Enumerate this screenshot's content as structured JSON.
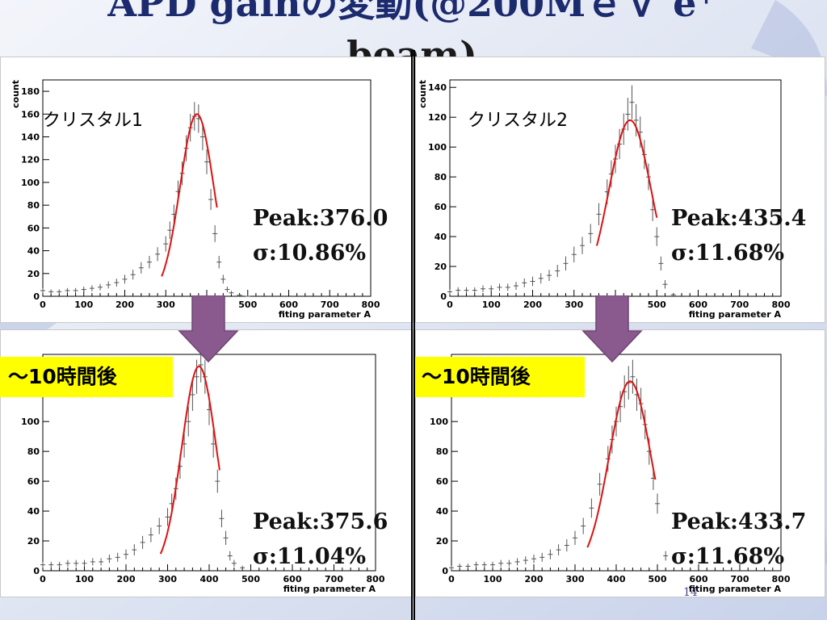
{
  "title": {
    "line1": "APD gainの変動(@200MｅＶ e⁺",
    "line2": "beam)"
  },
  "page_number": "14",
  "colors": {
    "fit": "#e01010",
    "data": "#555555",
    "arrow": "#8a5a8e",
    "badge": "#ffff00"
  },
  "icons": [
    "down-arrow-icon"
  ],
  "panels": [
    {
      "label": "クリスタル1",
      "peak": "Peak:376.0",
      "sigma": "σ:10.86%",
      "badge": ""
    },
    {
      "label": "クリスタル2",
      "peak": "Peak:435.4",
      "sigma": "σ:11.68%",
      "badge": ""
    },
    {
      "label": "",
      "peak": "Peak:375.6",
      "sigma": "σ:11.04%",
      "badge": "〜10時間後"
    },
    {
      "label": "",
      "peak": "Peak:433.7",
      "sigma": "σ:11.68%",
      "badge": "〜10時間後"
    }
  ],
  "chart_data": [
    {
      "type": "scatter",
      "title": "クリスタル1",
      "xlabel": "fiting parameter A",
      "ylabel": "count",
      "xlim": [
        0,
        800
      ],
      "ylim": [
        0,
        190
      ],
      "xticks": [
        0,
        100,
        200,
        300,
        400,
        500,
        600,
        700,
        800
      ],
      "yticks": [
        0,
        20,
        40,
        60,
        80,
        100,
        120,
        140,
        160,
        180
      ],
      "grid": false,
      "series": [
        {
          "x": [
            0,
            20,
            40,
            60,
            80,
            100,
            120,
            140,
            160,
            180,
            200,
            220,
            240,
            260,
            280,
            300,
            310,
            320,
            330,
            340,
            350,
            360,
            370,
            380,
            390,
            400,
            410,
            420,
            430,
            440,
            450,
            460,
            480,
            500
          ],
          "y": [
            5,
            4,
            4,
            5,
            5,
            6,
            7,
            8,
            10,
            12,
            15,
            19,
            25,
            30,
            37,
            46,
            58,
            72,
            92,
            108,
            130,
            148,
            158,
            156,
            140,
            118,
            85,
            55,
            30,
            15,
            6,
            3,
            1,
            0
          ]
        }
      ],
      "fit": {
        "peak": 376.0,
        "sigma_pct": 10.86,
        "amplitude": 160,
        "range": [
          290,
          425
        ]
      }
    },
    {
      "type": "scatter",
      "title": "クリスタル2",
      "xlabel": "fiting parameter A",
      "ylabel": "count",
      "xlim": [
        0,
        800
      ],
      "ylim": [
        0,
        145
      ],
      "xticks": [
        0,
        100,
        200,
        300,
        400,
        500,
        600,
        700,
        800
      ],
      "yticks": [
        0,
        20,
        40,
        60,
        80,
        100,
        120,
        140
      ],
      "grid": false,
      "series": [
        {
          "x": [
            0,
            20,
            40,
            60,
            80,
            100,
            120,
            140,
            160,
            180,
            200,
            220,
            240,
            260,
            280,
            300,
            320,
            340,
            360,
            380,
            390,
            400,
            410,
            420,
            430,
            440,
            450,
            460,
            470,
            480,
            490,
            500,
            510,
            520,
            540
          ],
          "y": [
            3,
            4,
            4,
            4,
            5,
            5,
            6,
            6,
            7,
            9,
            10,
            12,
            14,
            17,
            22,
            28,
            34,
            42,
            55,
            70,
            82,
            92,
            102,
            112,
            122,
            130,
            118,
            110,
            95,
            80,
            58,
            40,
            22,
            8,
            1
          ]
        }
      ],
      "fit": {
        "peak": 435.4,
        "sigma_pct": 11.68,
        "amplitude": 118,
        "range": [
          355,
          500
        ]
      }
    },
    {
      "type": "scatter",
      "title": "",
      "xlabel": "fiting parameter A",
      "ylabel": "",
      "xlim": [
        0,
        800
      ],
      "ylim": [
        0,
        145
      ],
      "xticks": [
        0,
        100,
        200,
        300,
        400,
        500,
        600,
        700,
        800
      ],
      "yticks": [
        0,
        20,
        40,
        60,
        80,
        100,
        120
      ],
      "grid": false,
      "series": [
        {
          "x": [
            0,
            20,
            40,
            60,
            80,
            100,
            120,
            140,
            160,
            180,
            200,
            220,
            240,
            260,
            280,
            300,
            310,
            320,
            330,
            340,
            350,
            360,
            370,
            380,
            390,
            400,
            410,
            420,
            430,
            440,
            450,
            460,
            480
          ],
          "y": [
            4,
            4,
            4,
            5,
            5,
            5,
            6,
            6,
            8,
            9,
            11,
            14,
            19,
            24,
            30,
            36,
            45,
            55,
            70,
            85,
            100,
            118,
            130,
            138,
            130,
            108,
            85,
            60,
            35,
            22,
            10,
            5,
            2
          ]
        }
      ],
      "fit": {
        "peak": 375.6,
        "sigma_pct": 11.04,
        "amplitude": 137,
        "range": [
          283,
          425
        ]
      }
    },
    {
      "type": "scatter",
      "title": "",
      "xlabel": "fiting parameter A",
      "ylabel": "",
      "xlim": [
        0,
        800
      ],
      "ylim": [
        0,
        145
      ],
      "xticks": [
        0,
        100,
        200,
        300,
        400,
        500,
        600,
        700,
        800
      ],
      "yticks": [
        0,
        20,
        40,
        60,
        80,
        100,
        120
      ],
      "grid": false,
      "series": [
        {
          "x": [
            0,
            20,
            40,
            60,
            80,
            100,
            120,
            140,
            160,
            180,
            200,
            220,
            240,
            260,
            280,
            300,
            320,
            340,
            360,
            380,
            390,
            400,
            410,
            420,
            430,
            440,
            450,
            460,
            470,
            480,
            490,
            500,
            520
          ],
          "y": [
            2,
            3,
            3,
            4,
            4,
            4,
            5,
            5,
            6,
            7,
            8,
            9,
            11,
            14,
            17,
            22,
            30,
            42,
            58,
            75,
            88,
            100,
            110,
            120,
            126,
            130,
            118,
            112,
            98,
            80,
            62,
            45,
            10
          ]
        }
      ],
      "fit": {
        "peak": 433.7,
        "sigma_pct": 11.68,
        "amplitude": 127,
        "range": [
          330,
          495
        ]
      }
    }
  ]
}
